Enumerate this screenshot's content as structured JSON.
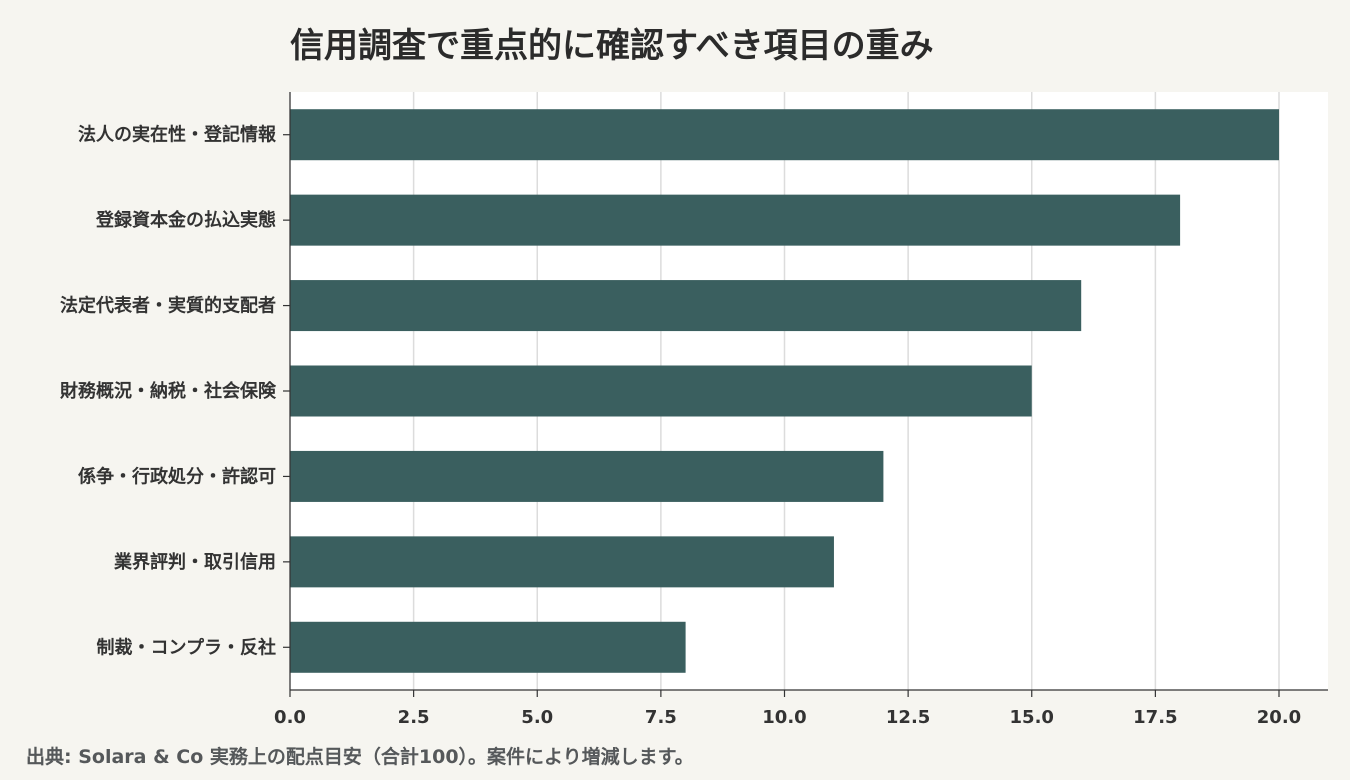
{
  "chart_data": {
    "type": "bar",
    "orientation": "horizontal",
    "title": "信用調査で重点的に確認すべき項目の重み",
    "categories": [
      "法人の実在性・登記情報",
      "登録資本金の払込実態",
      "法定代表者・実質的支配者",
      "財務概況・納税・社会保険",
      "係争・行政処分・許認可",
      "業界評判・取引信用",
      "制裁・コンプラ・反社"
    ],
    "values": [
      20,
      18,
      16,
      15,
      12,
      11,
      8
    ],
    "xlim": [
      0,
      21
    ],
    "xticks": [
      "0.0",
      "2.5",
      "5.0",
      "7.5",
      "10.0",
      "12.5",
      "15.0",
      "17.5",
      "20.0"
    ],
    "grid": "vertical",
    "bar_color": "#3a5f5f",
    "footnote": "出典: Solara & Co 実務上の配点目安（合計100）。案件により増減します。"
  }
}
